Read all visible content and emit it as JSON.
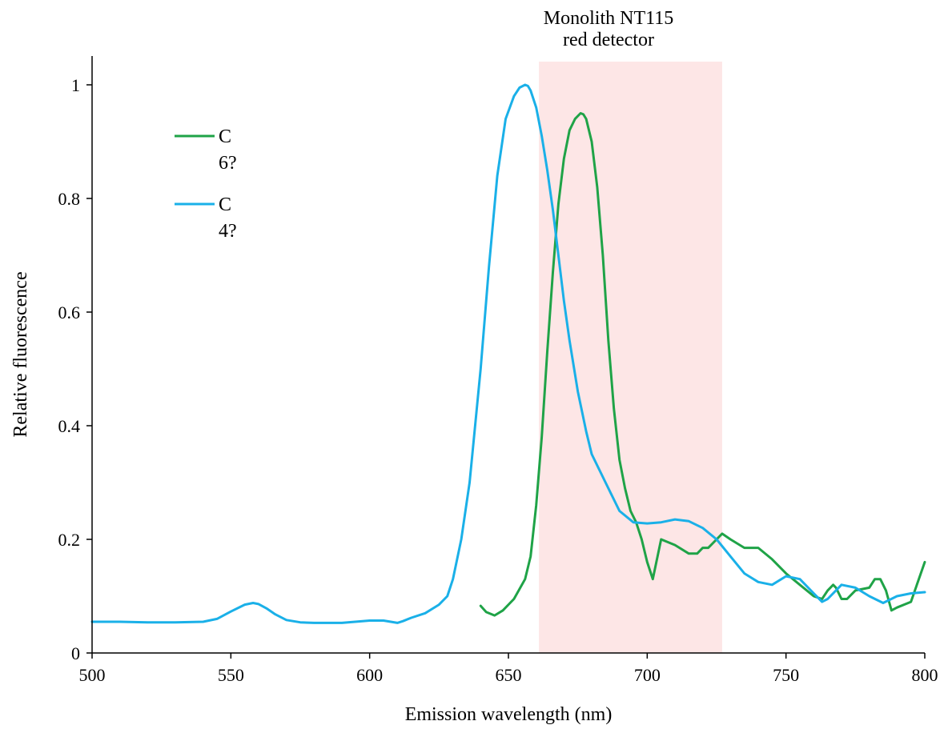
{
  "chart_data": {
    "type": "line",
    "title": "",
    "xlabel": "Emission wavelength (nm)",
    "ylabel": "Relative fluorescence",
    "xlim": [
      500,
      800
    ],
    "ylim": [
      0,
      1.05
    ],
    "xticks": [
      500,
      550,
      600,
      650,
      700,
      750,
      800
    ],
    "yticks": [
      0,
      0.2,
      0.4,
      0.6,
      0.8,
      1
    ],
    "ytick_labels": [
      "0",
      "0.2",
      "0.4",
      "0.6",
      "0.8",
      "1"
    ],
    "grid": false,
    "legend_position": "top-left",
    "highlight_band": {
      "x_start": 661,
      "x_end": 727,
      "label_lines": [
        "Monolith NT115",
        "red detector"
      ],
      "color": "#fde6e6"
    },
    "series": [
      {
        "legend_lines": [
          "C",
          "6?"
        ],
        "color": "#1fa347",
        "x": [
          640,
          642,
          645,
          648,
          652,
          656,
          658,
          660,
          662,
          664,
          666,
          668,
          670,
          672,
          674,
          676,
          677,
          678,
          680,
          682,
          684,
          686,
          688,
          690,
          692,
          694,
          696,
          698,
          700,
          702,
          705,
          710,
          715,
          718,
          720,
          722,
          725,
          727,
          730,
          735,
          740,
          745,
          750,
          755,
          760,
          763,
          765,
          767,
          768,
          770,
          772,
          775,
          780,
          782,
          784,
          786,
          788,
          790,
          795,
          800
        ],
        "y": [
          0.083,
          0.072,
          0.066,
          0.075,
          0.095,
          0.13,
          0.17,
          0.26,
          0.38,
          0.53,
          0.67,
          0.79,
          0.87,
          0.92,
          0.94,
          0.95,
          0.948,
          0.94,
          0.9,
          0.82,
          0.7,
          0.55,
          0.43,
          0.34,
          0.29,
          0.25,
          0.23,
          0.2,
          0.16,
          0.13,
          0.2,
          0.19,
          0.175,
          0.175,
          0.185,
          0.185,
          0.2,
          0.21,
          0.2,
          0.185,
          0.185,
          0.165,
          0.14,
          0.12,
          0.1,
          0.095,
          0.11,
          0.12,
          0.115,
          0.095,
          0.095,
          0.11,
          0.115,
          0.13,
          0.13,
          0.11,
          0.075,
          0.08,
          0.09,
          0.16
        ]
      },
      {
        "legend_lines": [
          "C",
          "4?"
        ],
        "color": "#1ab0e8",
        "x": [
          500,
          510,
          520,
          530,
          540,
          545,
          550,
          555,
          558,
          560,
          563,
          566,
          570,
          575,
          580,
          590,
          600,
          605,
          610,
          612,
          615,
          620,
          625,
          628,
          630,
          633,
          636,
          640,
          643,
          646,
          649,
          652,
          654,
          656,
          657,
          658,
          660,
          662,
          664,
          666,
          668,
          670,
          672,
          675,
          678,
          680,
          685,
          690,
          695,
          700,
          705,
          710,
          715,
          720,
          725,
          730,
          735,
          740,
          745,
          750,
          755,
          760,
          763,
          765,
          770,
          775,
          780,
          785,
          790,
          795,
          800
        ],
        "y": [
          0.055,
          0.055,
          0.054,
          0.054,
          0.055,
          0.06,
          0.073,
          0.085,
          0.088,
          0.086,
          0.078,
          0.068,
          0.058,
          0.054,
          0.053,
          0.053,
          0.057,
          0.057,
          0.053,
          0.056,
          0.062,
          0.07,
          0.085,
          0.1,
          0.13,
          0.2,
          0.3,
          0.5,
          0.68,
          0.84,
          0.94,
          0.98,
          0.995,
          1.0,
          0.998,
          0.99,
          0.96,
          0.91,
          0.85,
          0.78,
          0.7,
          0.62,
          0.55,
          0.46,
          0.39,
          0.35,
          0.3,
          0.25,
          0.23,
          0.228,
          0.23,
          0.235,
          0.232,
          0.22,
          0.2,
          0.17,
          0.14,
          0.125,
          0.12,
          0.135,
          0.13,
          0.105,
          0.09,
          0.095,
          0.12,
          0.115,
          0.1,
          0.088,
          0.1,
          0.105,
          0.107
        ]
      }
    ]
  }
}
